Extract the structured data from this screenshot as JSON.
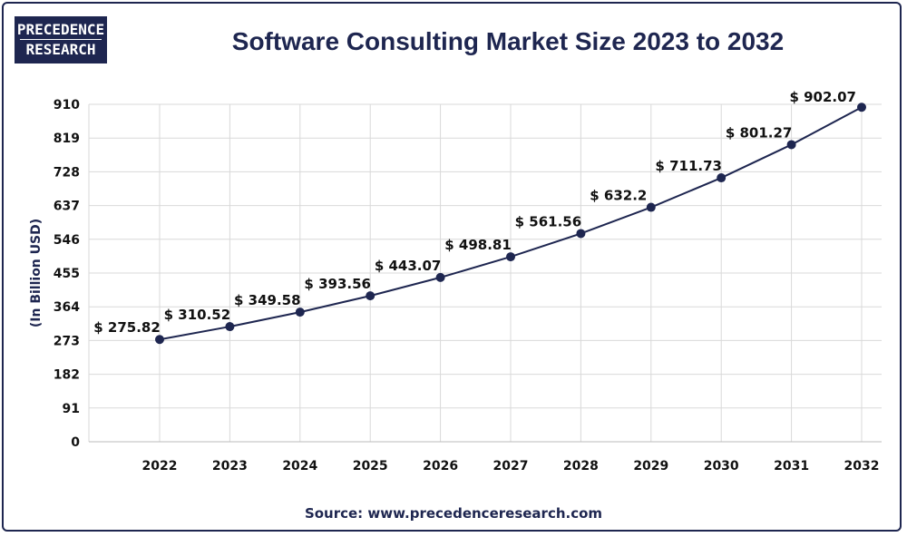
{
  "brand": {
    "line1": "PRECEDENCE",
    "line2": "RESEARCH"
  },
  "title": "Software Consulting Market Size 2023 to 2032",
  "source": "Source: www.precedenceresearch.com",
  "colors": {
    "navy": "#1e2650",
    "grid": "#d9d9d9"
  },
  "chart_data": {
    "type": "line",
    "title": "Software Consulting Market Size 2023 to 2032",
    "xlabel": "",
    "ylabel": "(In Billion USD)",
    "categories": [
      "2022",
      "2023",
      "2024",
      "2025",
      "2026",
      "2027",
      "2028",
      "2029",
      "2030",
      "2031",
      "2032"
    ],
    "values": [
      275.82,
      310.52,
      349.58,
      393.56,
      443.07,
      498.81,
      561.56,
      632.2,
      711.73,
      801.27,
      902.07
    ],
    "value_labels": [
      "$ 275.82",
      "$ 310.52",
      "$ 349.58",
      "$ 393.56",
      "$ 443.07",
      "$ 498.81",
      "$ 561.56",
      "$ 632.2",
      "$ 711.73",
      "$ 801.27",
      "$ 902.07"
    ],
    "yticks": [
      0,
      91,
      182,
      273,
      364,
      455,
      546,
      637,
      728,
      819,
      910
    ],
    "ylim": [
      0,
      910
    ],
    "grid": true
  }
}
